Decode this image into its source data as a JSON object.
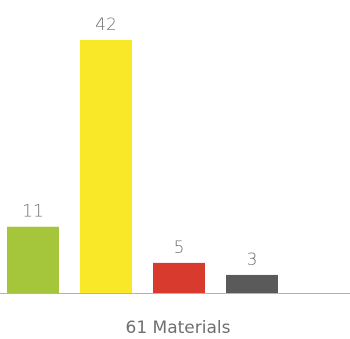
{
  "chart_data": {
    "type": "bar",
    "categories": [
      "",
      "",
      "",
      ""
    ],
    "values": [
      11,
      42,
      5,
      3
    ],
    "colors": [
      "#a5c63b",
      "#f9e827",
      "#d93a2e",
      "#5a5a5a"
    ],
    "baseline_color": "#b3b3b3",
    "label_color": "#6f6f6f",
    "caption": "61 Materials",
    "ylim": [
      0,
      42
    ],
    "grid": false
  }
}
